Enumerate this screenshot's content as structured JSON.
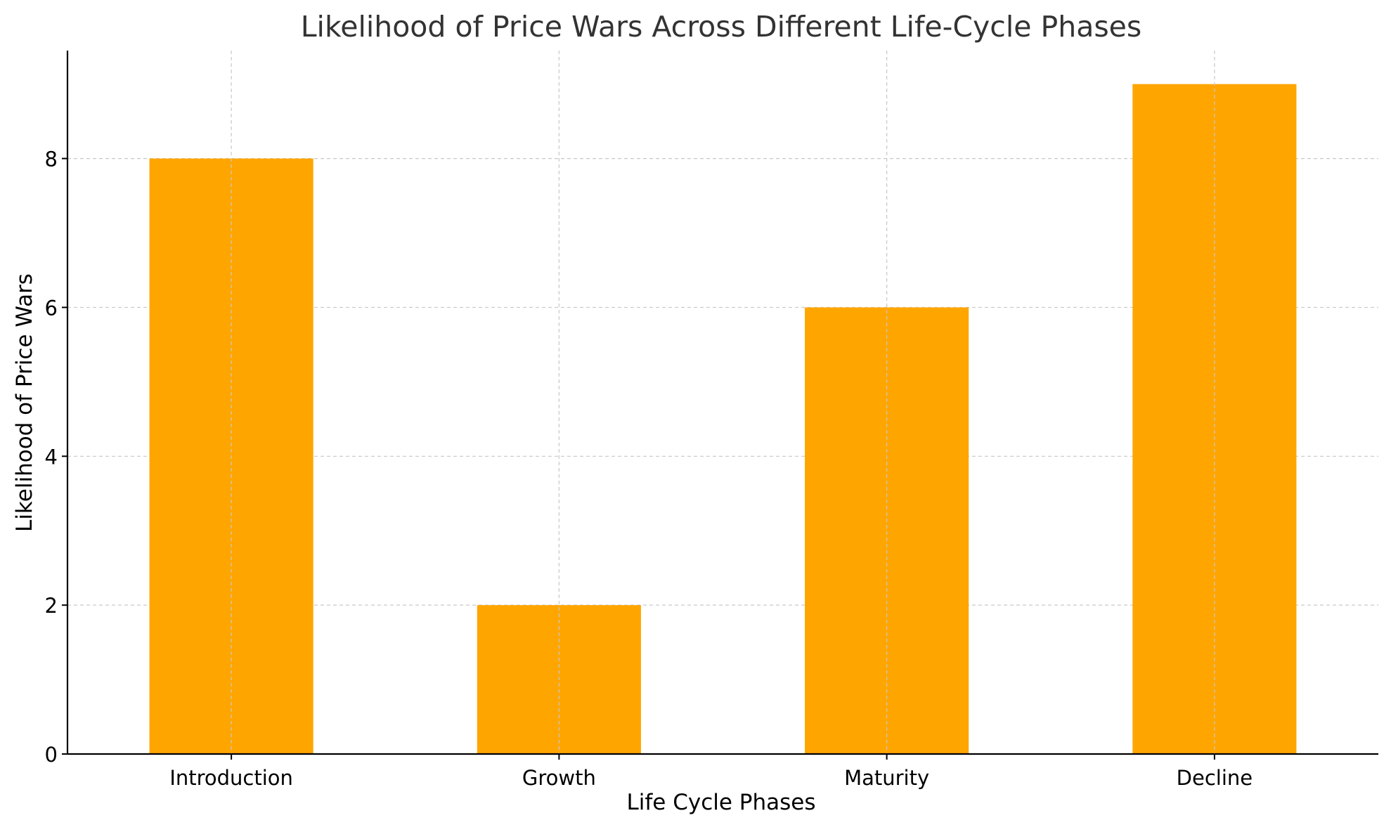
{
  "chart_data": {
    "type": "bar",
    "title": "Likelihood of Price Wars Across Different Life-Cycle Phases",
    "xlabel": "Life Cycle Phases",
    "ylabel": "Likelihood of Price Wars",
    "categories": [
      "Introduction",
      "Growth",
      "Maturity",
      "Decline"
    ],
    "values": [
      8,
      2,
      6,
      9
    ],
    "ylim": [
      0,
      9.45
    ],
    "yticks": [
      0,
      2,
      4,
      6,
      8
    ],
    "grid": true,
    "bar_color": "#FFA500",
    "text_color": "#333333",
    "grid_color": "#c8c8c8"
  }
}
